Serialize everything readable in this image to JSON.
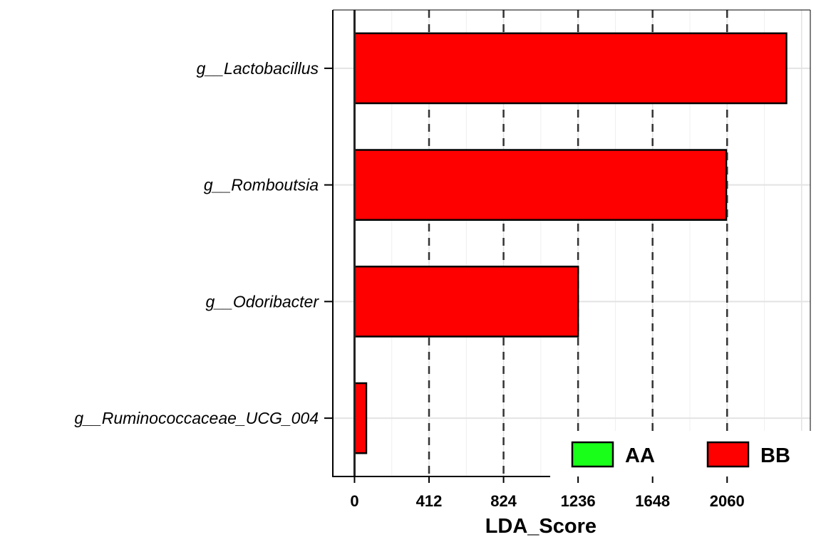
{
  "chart_data": {
    "type": "bar",
    "orientation": "horizontal",
    "categories": [
      "g__Lactobacillus",
      "g__Romboutsia",
      "g__Odoribacter",
      "g__Ruminococcaceae_UCG_004"
    ],
    "values": [
      2388,
      2055,
      1236,
      65
    ],
    "bar_groups": [
      "BB",
      "BB",
      "BB",
      "BB"
    ],
    "xlabel": "LDA_Score",
    "ylabel": "",
    "xticks": [
      0,
      412,
      824,
      1236,
      1648,
      2060
    ],
    "xlim": [
      -120,
      2520
    ],
    "dashed_reference_lines": [
      412,
      824,
      1236,
      1648,
      2060
    ],
    "grid": true,
    "legend": {
      "placement": "bottom-right",
      "entries": [
        {
          "label": "AA",
          "color": "#1aff1a"
        },
        {
          "label": "BB",
          "color": "#ff0000"
        }
      ]
    },
    "colors": {
      "AA": "#1aff1a",
      "BB": "#ff0000"
    }
  }
}
